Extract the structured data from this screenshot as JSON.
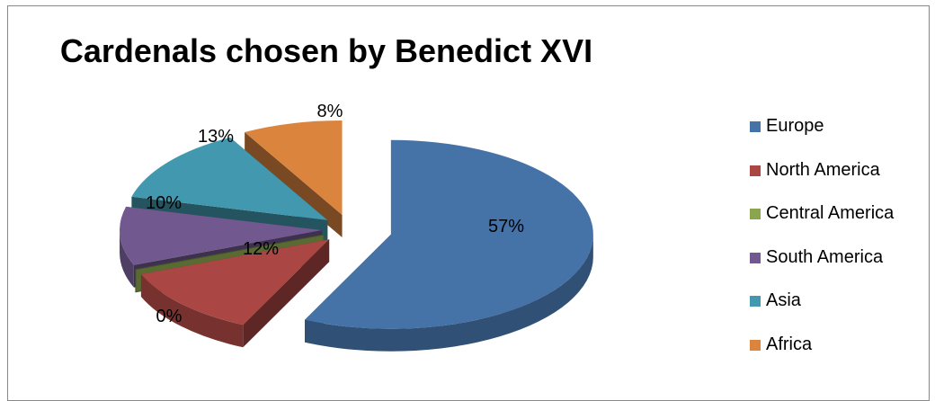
{
  "chart_data": {
    "type": "pie",
    "title": "Cardenals chosen by Benedict XVI",
    "categories": [
      "Europe",
      "North America",
      "Central America",
      "South America",
      "Asia",
      "Africa"
    ],
    "values": [
      57,
      12,
      0,
      10,
      13,
      8
    ],
    "value_labels": [
      "57%",
      "12%",
      "0%",
      "10%",
      "13%",
      "8%"
    ],
    "colors": [
      "#4572A7",
      "#AA4643",
      "#89A54E",
      "#71588F",
      "#4198AF",
      "#DB843D"
    ],
    "style": "3d-exploded",
    "legend_position": "right"
  }
}
